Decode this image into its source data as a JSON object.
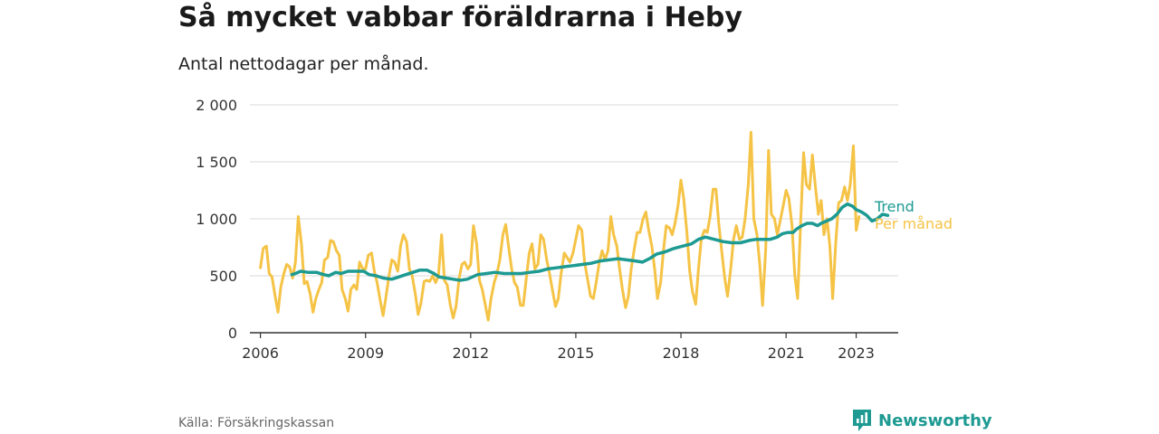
{
  "header": {
    "title": "Så mycket vabbar föräldrarna i Heby",
    "subtitle": "Antal nettodagar per månad."
  },
  "footer": {
    "source": "Källa: Försäkringskassan",
    "brand": "Newsworthy"
  },
  "colors": {
    "trend": "#1d9a92",
    "monthly": "#f5c345",
    "grid": "#d9d9d9",
    "axis": "#333333",
    "brand": "#1d9a92"
  },
  "chart_data": {
    "type": "line",
    "ylim": [
      0,
      2000
    ],
    "xlim": [
      2005.7,
      2024.2
    ],
    "y_ticks": [
      {
        "value": 0,
        "label": "0"
      },
      {
        "value": 500,
        "label": "500"
      },
      {
        "value": 1000,
        "label": "1 000"
      },
      {
        "value": 1500,
        "label": "1 500"
      },
      {
        "value": 2000,
        "label": "2 000"
      }
    ],
    "x_ticks": [
      {
        "value": 2006,
        "label": "2006"
      },
      {
        "value": 2009,
        "label": "2009"
      },
      {
        "value": 2012,
        "label": "2012"
      },
      {
        "value": 2015,
        "label": "2015"
      },
      {
        "value": 2018,
        "label": "2018"
      },
      {
        "value": 2021,
        "label": "2021"
      },
      {
        "value": 2023,
        "label": "2023"
      }
    ],
    "grid": true,
    "series": [
      {
        "name": "Per månad",
        "color": "#f5c345",
        "points": [
          [
            2006.0,
            570
          ],
          [
            2006.08,
            740
          ],
          [
            2006.17,
            760
          ],
          [
            2006.25,
            520
          ],
          [
            2006.33,
            490
          ],
          [
            2006.42,
            320
          ],
          [
            2006.5,
            180
          ],
          [
            2006.58,
            400
          ],
          [
            2006.67,
            520
          ],
          [
            2006.75,
            600
          ],
          [
            2006.83,
            580
          ],
          [
            2006.92,
            480
          ],
          [
            2007.0,
            620
          ],
          [
            2007.08,
            1020
          ],
          [
            2007.17,
            780
          ],
          [
            2007.25,
            430
          ],
          [
            2007.33,
            450
          ],
          [
            2007.42,
            340
          ],
          [
            2007.5,
            180
          ],
          [
            2007.58,
            300
          ],
          [
            2007.67,
            380
          ],
          [
            2007.75,
            440
          ],
          [
            2007.83,
            640
          ],
          [
            2007.92,
            660
          ],
          [
            2008.0,
            810
          ],
          [
            2008.08,
            800
          ],
          [
            2008.17,
            720
          ],
          [
            2008.25,
            680
          ],
          [
            2008.33,
            380
          ],
          [
            2008.42,
            300
          ],
          [
            2008.5,
            190
          ],
          [
            2008.58,
            380
          ],
          [
            2008.67,
            420
          ],
          [
            2008.75,
            380
          ],
          [
            2008.83,
            620
          ],
          [
            2008.92,
            560
          ],
          [
            2009.0,
            560
          ],
          [
            2009.08,
            680
          ],
          [
            2009.17,
            700
          ],
          [
            2009.25,
            540
          ],
          [
            2009.33,
            440
          ],
          [
            2009.42,
            280
          ],
          [
            2009.5,
            150
          ],
          [
            2009.58,
            310
          ],
          [
            2009.67,
            500
          ],
          [
            2009.75,
            640
          ],
          [
            2009.83,
            620
          ],
          [
            2009.92,
            540
          ],
          [
            2010.0,
            760
          ],
          [
            2010.08,
            860
          ],
          [
            2010.17,
            800
          ],
          [
            2010.25,
            560
          ],
          [
            2010.33,
            500
          ],
          [
            2010.42,
            340
          ],
          [
            2010.5,
            160
          ],
          [
            2010.58,
            260
          ],
          [
            2010.67,
            450
          ],
          [
            2010.75,
            460
          ],
          [
            2010.83,
            450
          ],
          [
            2010.92,
            500
          ],
          [
            2011.0,
            440
          ],
          [
            2011.08,
            500
          ],
          [
            2011.17,
            860
          ],
          [
            2011.25,
            460
          ],
          [
            2011.33,
            420
          ],
          [
            2011.42,
            240
          ],
          [
            2011.5,
            130
          ],
          [
            2011.58,
            230
          ],
          [
            2011.67,
            480
          ],
          [
            2011.75,
            600
          ],
          [
            2011.83,
            620
          ],
          [
            2011.92,
            560
          ],
          [
            2012.0,
            600
          ],
          [
            2012.08,
            940
          ],
          [
            2012.17,
            780
          ],
          [
            2012.25,
            460
          ],
          [
            2012.33,
            380
          ],
          [
            2012.42,
            240
          ],
          [
            2012.5,
            110
          ],
          [
            2012.58,
            300
          ],
          [
            2012.67,
            440
          ],
          [
            2012.75,
            520
          ],
          [
            2012.83,
            640
          ],
          [
            2012.92,
            860
          ],
          [
            2013.0,
            950
          ],
          [
            2013.08,
            760
          ],
          [
            2013.17,
            560
          ],
          [
            2013.25,
            440
          ],
          [
            2013.33,
            400
          ],
          [
            2013.42,
            240
          ],
          [
            2013.5,
            240
          ],
          [
            2013.58,
            460
          ],
          [
            2013.67,
            700
          ],
          [
            2013.75,
            780
          ],
          [
            2013.83,
            560
          ],
          [
            2013.92,
            600
          ],
          [
            2014.0,
            860
          ],
          [
            2014.08,
            820
          ],
          [
            2014.17,
            640
          ],
          [
            2014.25,
            520
          ],
          [
            2014.33,
            380
          ],
          [
            2014.42,
            230
          ],
          [
            2014.5,
            300
          ],
          [
            2014.58,
            520
          ],
          [
            2014.67,
            700
          ],
          [
            2014.75,
            660
          ],
          [
            2014.83,
            620
          ],
          [
            2014.92,
            700
          ],
          [
            2015.0,
            820
          ],
          [
            2015.08,
            940
          ],
          [
            2015.17,
            900
          ],
          [
            2015.25,
            620
          ],
          [
            2015.33,
            480
          ],
          [
            2015.42,
            320
          ],
          [
            2015.5,
            300
          ],
          [
            2015.58,
            440
          ],
          [
            2015.67,
            620
          ],
          [
            2015.75,
            720
          ],
          [
            2015.83,
            640
          ],
          [
            2015.92,
            720
          ],
          [
            2016.0,
            1020
          ],
          [
            2016.08,
            860
          ],
          [
            2016.17,
            760
          ],
          [
            2016.25,
            560
          ],
          [
            2016.33,
            380
          ],
          [
            2016.42,
            220
          ],
          [
            2016.5,
            320
          ],
          [
            2016.58,
            560
          ],
          [
            2016.67,
            740
          ],
          [
            2016.75,
            880
          ],
          [
            2016.83,
            880
          ],
          [
            2016.92,
            1000
          ],
          [
            2017.0,
            1060
          ],
          [
            2017.08,
            900
          ],
          [
            2017.17,
            760
          ],
          [
            2017.25,
            560
          ],
          [
            2017.33,
            300
          ],
          [
            2017.42,
            440
          ],
          [
            2017.5,
            720
          ],
          [
            2017.58,
            940
          ],
          [
            2017.67,
            920
          ],
          [
            2017.75,
            860
          ],
          [
            2017.83,
            960
          ],
          [
            2017.92,
            1120
          ],
          [
            2018.0,
            1340
          ],
          [
            2018.08,
            1180
          ],
          [
            2018.17,
            880
          ],
          [
            2018.25,
            540
          ],
          [
            2018.33,
            360
          ],
          [
            2018.42,
            250
          ],
          [
            2018.5,
            560
          ],
          [
            2018.58,
            820
          ],
          [
            2018.67,
            900
          ],
          [
            2018.75,
            880
          ],
          [
            2018.83,
            1020
          ],
          [
            2018.92,
            1260
          ],
          [
            2019.0,
            1260
          ],
          [
            2019.08,
            960
          ],
          [
            2019.17,
            700
          ],
          [
            2019.25,
            480
          ],
          [
            2019.33,
            320
          ],
          [
            2019.42,
            560
          ],
          [
            2019.5,
            820
          ],
          [
            2019.58,
            940
          ],
          [
            2019.67,
            820
          ],
          [
            2019.75,
            840
          ],
          [
            2019.83,
            1000
          ],
          [
            2019.92,
            1300
          ],
          [
            2020.0,
            1760
          ],
          [
            2020.08,
            1000
          ],
          [
            2020.17,
            860
          ],
          [
            2020.25,
            600
          ],
          [
            2020.33,
            240
          ],
          [
            2020.42,
            740
          ],
          [
            2020.5,
            1600
          ],
          [
            2020.58,
            1040
          ],
          [
            2020.67,
            1000
          ],
          [
            2020.75,
            860
          ],
          [
            2020.83,
            980
          ],
          [
            2020.92,
            1120
          ],
          [
            2021.0,
            1250
          ],
          [
            2021.08,
            1180
          ],
          [
            2021.17,
            940
          ],
          [
            2021.25,
            500
          ],
          [
            2021.33,
            300
          ],
          [
            2021.42,
            1000
          ],
          [
            2021.5,
            1580
          ],
          [
            2021.58,
            1300
          ],
          [
            2021.67,
            1260
          ],
          [
            2021.75,
            1560
          ],
          [
            2021.83,
            1300
          ],
          [
            2021.92,
            1040
          ],
          [
            2022.0,
            1160
          ],
          [
            2022.08,
            860
          ],
          [
            2022.17,
            1000
          ],
          [
            2022.25,
            760
          ],
          [
            2022.33,
            300
          ],
          [
            2022.42,
            800
          ],
          [
            2022.5,
            1140
          ],
          [
            2022.58,
            1160
          ],
          [
            2022.67,
            1280
          ],
          [
            2022.75,
            1160
          ],
          [
            2022.83,
            1300
          ],
          [
            2022.92,
            1640
          ],
          [
            2023.0,
            900
          ],
          [
            2023.08,
            1020
          ]
        ]
      },
      {
        "name": "Trend",
        "color": "#1d9a92",
        "points": [
          [
            2006.9,
            510
          ],
          [
            2007.0,
            520
          ],
          [
            2007.15,
            540
          ],
          [
            2007.35,
            530
          ],
          [
            2007.6,
            530
          ],
          [
            2007.8,
            510
          ],
          [
            2007.95,
            500
          ],
          [
            2008.15,
            530
          ],
          [
            2008.3,
            520
          ],
          [
            2008.5,
            540
          ],
          [
            2008.75,
            540
          ],
          [
            2008.95,
            540
          ],
          [
            2009.1,
            510
          ],
          [
            2009.3,
            500
          ],
          [
            2009.5,
            480
          ],
          [
            2009.75,
            470
          ],
          [
            2009.95,
            490
          ],
          [
            2010.15,
            510
          ],
          [
            2010.35,
            530
          ],
          [
            2010.55,
            550
          ],
          [
            2010.75,
            550
          ],
          [
            2010.95,
            520
          ],
          [
            2011.1,
            490
          ],
          [
            2011.3,
            480
          ],
          [
            2011.5,
            470
          ],
          [
            2011.7,
            460
          ],
          [
            2011.9,
            470
          ],
          [
            2012.05,
            490
          ],
          [
            2012.2,
            510
          ],
          [
            2012.45,
            520
          ],
          [
            2012.7,
            530
          ],
          [
            2012.95,
            520
          ],
          [
            2013.2,
            520
          ],
          [
            2013.45,
            520
          ],
          [
            2013.7,
            530
          ],
          [
            2013.95,
            540
          ],
          [
            2014.2,
            560
          ],
          [
            2014.45,
            570
          ],
          [
            2014.7,
            580
          ],
          [
            2014.95,
            590
          ],
          [
            2015.2,
            600
          ],
          [
            2015.45,
            610
          ],
          [
            2015.7,
            630
          ],
          [
            2015.95,
            640
          ],
          [
            2016.2,
            650
          ],
          [
            2016.45,
            640
          ],
          [
            2016.7,
            630
          ],
          [
            2016.9,
            620
          ],
          [
            2017.1,
            650
          ],
          [
            2017.3,
            690
          ],
          [
            2017.55,
            710
          ],
          [
            2017.8,
            740
          ],
          [
            2018.05,
            760
          ],
          [
            2018.3,
            780
          ],
          [
            2018.5,
            820
          ],
          [
            2018.7,
            840
          ],
          [
            2018.95,
            820
          ],
          [
            2019.2,
            800
          ],
          [
            2019.45,
            790
          ],
          [
            2019.7,
            790
          ],
          [
            2019.95,
            810
          ],
          [
            2020.15,
            820
          ],
          [
            2020.35,
            820
          ],
          [
            2020.55,
            820
          ],
          [
            2020.75,
            840
          ],
          [
            2020.9,
            870
          ],
          [
            2021.05,
            880
          ],
          [
            2021.2,
            880
          ],
          [
            2021.3,
            910
          ],
          [
            2021.45,
            940
          ],
          [
            2021.6,
            960
          ],
          [
            2021.75,
            960
          ],
          [
            2021.9,
            940
          ],
          [
            2022.0,
            960
          ],
          [
            2022.15,
            980
          ],
          [
            2022.3,
            1000
          ],
          [
            2022.45,
            1040
          ],
          [
            2022.6,
            1100
          ],
          [
            2022.75,
            1130
          ],
          [
            2022.9,
            1110
          ],
          [
            2023.0,
            1080
          ],
          [
            2023.15,
            1060
          ],
          [
            2023.3,
            1030
          ],
          [
            2023.45,
            980
          ],
          [
            2023.6,
            1000
          ],
          [
            2023.75,
            1040
          ],
          [
            2023.9,
            1030
          ]
        ]
      }
    ]
  }
}
